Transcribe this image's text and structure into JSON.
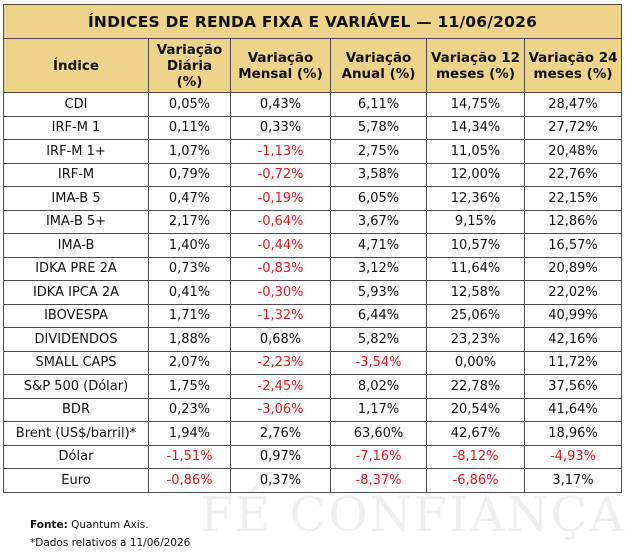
{
  "title": "ÍNDICES DE RENDA FIXA E VARIÁVEL — 11/06/2026",
  "headers": [
    "Índice",
    "Variação Diária (%)",
    "Variação Mensal (%)",
    "Variação Anual (%)",
    "Variação 12 meses (%)",
    "Variação 24 meses (%)"
  ],
  "header_lines": [
    [
      "Índice"
    ],
    [
      "Variação",
      "Diária",
      "(%)"
    ],
    [
      "Variação",
      "Mensal (%)"
    ],
    [
      "Variação",
      "Anual (%)"
    ],
    [
      "Variação 12",
      "meses (%)"
    ],
    [
      "Variação 24",
      "meses (%)"
    ]
  ],
  "rows": [
    [
      "CDI",
      "0,05%",
      "0,43%",
      "6,11%",
      "14,75%",
      "28,47%"
    ],
    [
      "IRF-M 1",
      "0,11%",
      "0,33%",
      "5,78%",
      "14,34%",
      "27,72%"
    ],
    [
      "IRF-M 1+",
      "1,07%",
      "-1,13%",
      "2,75%",
      "11,05%",
      "20,48%"
    ],
    [
      "IRF-M",
      "0,79%",
      "-0,72%",
      "3,58%",
      "12,00%",
      "22,76%"
    ],
    [
      "IMA-B 5",
      "0,47%",
      "-0,19%",
      "6,05%",
      "12,36%",
      "22,15%"
    ],
    [
      "IMA-B 5+",
      "2,17%",
      "-0,64%",
      "3,67%",
      "9,15%",
      "12,86%"
    ],
    [
      "IMA-B",
      "1,40%",
      "-0,44%",
      "4,71%",
      "10,57%",
      "16,57%"
    ],
    [
      "IDKA PRE 2A",
      "0,73%",
      "-0,83%",
      "3,12%",
      "11,64%",
      "20,89%"
    ],
    [
      "IDKA IPCA 2A",
      "0,41%",
      "-0,30%",
      "5,93%",
      "12,58%",
      "22,02%"
    ],
    [
      "IBOVESPA",
      "1,71%",
      "-1,32%",
      "6,44%",
      "25,06%",
      "40,99%"
    ],
    [
      "DIVIDENDOS",
      "1,88%",
      "0,68%",
      "5,82%",
      "23,23%",
      "42,16%"
    ],
    [
      "SMALL CAPS",
      "2,07%",
      "-2,23%",
      "-3,54%",
      "0,00%",
      "11,72%"
    ],
    [
      "S&P 500 (Dólar)",
      "1,75%",
      "-2,45%",
      "8,02%",
      "22,78%",
      "37,56%"
    ],
    [
      "BDR",
      "0,23%",
      "-3,06%",
      "1,17%",
      "20,54%",
      "41,64%"
    ],
    [
      "Brent (US$/barril)*",
      "1,94%",
      "2,76%",
      "63,60%",
      "42,67%",
      "18,96%"
    ],
    [
      "Dólar",
      "-1,51%",
      "0,97%",
      "-7,16%",
      "-8,12%",
      "-4,93%"
    ],
    [
      "Euro",
      "-0,86%",
      "0,37%",
      "-8,37%",
      "-6,86%",
      "3,17%"
    ]
  ],
  "footer": {
    "source_label": "Fonte:",
    "source_value": " Quantum Axis.",
    "note": "*Dados relativos a 11/06/2026"
  },
  "watermark": "FÉ CONFIANÇA",
  "colors": {
    "header_bg": "#eed38b",
    "negative": "#e01b1b",
    "border": "#4a4a4a"
  }
}
